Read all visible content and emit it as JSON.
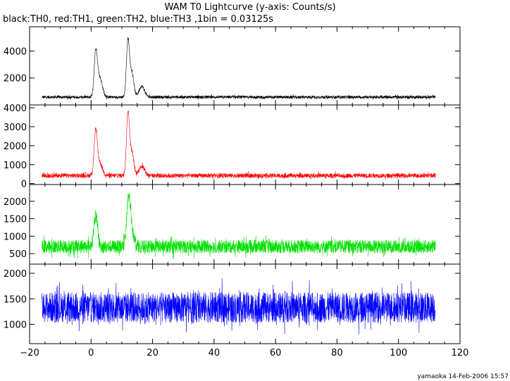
{
  "title": "WAM T0 Lightcurve (y-axis: Counts/s)",
  "subtitle": "black:TH0, red:TH1, green:TH2, blue:TH3 ,1bin = 0.03125s",
  "footer": "yamaoka 14-Feb-2006 15:57",
  "chart_data": [
    {
      "type": "line",
      "series": [
        {
          "name": "TH0",
          "color": "#000000",
          "baseline": 580,
          "noise": 110,
          "peaks": [
            {
              "x": 1.5,
              "amp": 3000,
              "width": 0.5
            },
            {
              "x": 2.7,
              "amp": 1500,
              "width": 0.9
            },
            {
              "x": 12.0,
              "amp": 4200,
              "width": 0.5
            },
            {
              "x": 13.3,
              "amp": 1800,
              "width": 0.6
            },
            {
              "x": 16.5,
              "amp": 800,
              "width": 0.9
            }
          ]
        }
      ],
      "xlim": [
        -20,
        120
      ],
      "ylim": [
        0,
        5800
      ],
      "y_ticks": [
        2000,
        4000
      ],
      "x_ticks": [
        -20,
        0,
        20,
        40,
        60,
        80,
        100,
        120
      ],
      "x_range": [
        -16,
        112
      ],
      "grid": false
    },
    {
      "type": "line",
      "series": [
        {
          "name": "TH1",
          "color": "#ff0000",
          "baseline": 420,
          "noise": 120,
          "peaks": [
            {
              "x": 1.5,
              "amp": 2200,
              "width": 0.5
            },
            {
              "x": 2.7,
              "amp": 700,
              "width": 0.9
            },
            {
              "x": 12.0,
              "amp": 3300,
              "width": 0.5
            },
            {
              "x": 13.3,
              "amp": 1200,
              "width": 0.6
            },
            {
              "x": 16.5,
              "amp": 500,
              "width": 0.9
            }
          ]
        }
      ],
      "xlim": [
        -20,
        120
      ],
      "ylim": [
        -50,
        4150
      ],
      "y_ticks": [
        0,
        1000,
        2000,
        3000,
        4000
      ],
      "x_ticks": [
        -20,
        0,
        20,
        40,
        60,
        80,
        100,
        120
      ],
      "x_range": [
        -16,
        112
      ],
      "grid": false
    },
    {
      "type": "line",
      "series": [
        {
          "name": "TH2",
          "color": "#00e000",
          "baseline": 700,
          "noise": 190,
          "peaks": [
            {
              "x": 1.5,
              "amp": 900,
              "width": 0.6
            },
            {
              "x": 12.2,
              "amp": 1300,
              "width": 0.6
            },
            {
              "x": 13.3,
              "amp": 400,
              "width": 0.8
            }
          ]
        }
      ],
      "xlim": [
        -20,
        120
      ],
      "ylim": [
        200,
        2480
      ],
      "y_ticks": [
        500,
        1000,
        1500,
        2000
      ],
      "x_ticks": [
        -20,
        0,
        20,
        40,
        60,
        80,
        100,
        120
      ],
      "x_range": [
        -16,
        112
      ],
      "grid": false
    },
    {
      "type": "line",
      "series": [
        {
          "name": "TH3",
          "color": "#0000ff",
          "baseline": 1330,
          "noise": 300,
          "peaks": []
        }
      ],
      "xlim": [
        -20,
        120
      ],
      "ylim": [
        620,
        2180
      ],
      "y_ticks": [
        1000,
        1500,
        2000
      ],
      "x_ticks": [
        -20,
        0,
        20,
        40,
        60,
        80,
        100,
        120
      ],
      "x_range": [
        -16,
        112
      ],
      "grid": false
    }
  ]
}
